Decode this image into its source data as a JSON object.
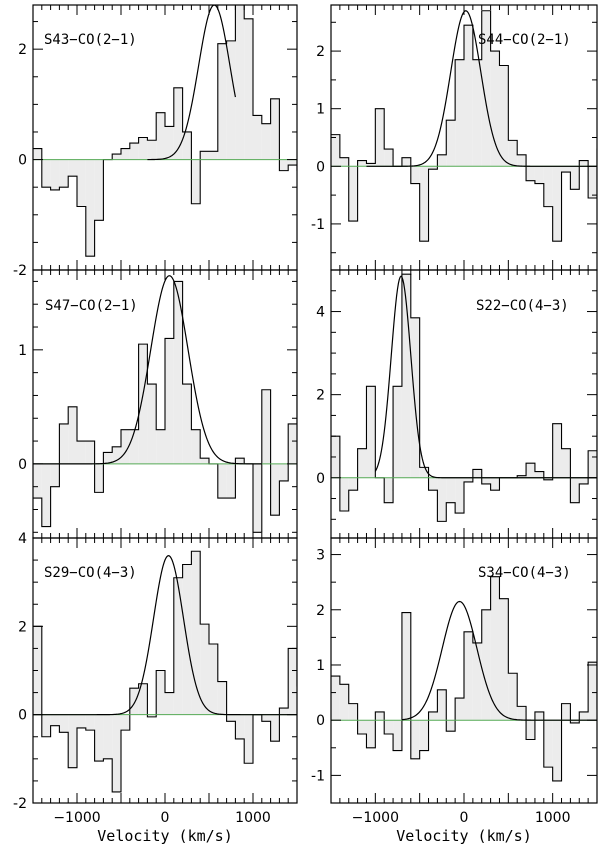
{
  "chart_data": [
    {
      "type": "histogram",
      "label": "S43−CO(2−1)",
      "xlim": [
        -1500,
        1500
      ],
      "ylim": [
        -2,
        2.8
      ],
      "yticks": [
        -2,
        0,
        2
      ],
      "xticks": [
        -1000,
        0,
        1000
      ],
      "bin_width": 100,
      "bins_start": -1500,
      "values": [
        0.2,
        -0.5,
        -0.55,
        -0.5,
        -0.3,
        -0.85,
        -1.75,
        -1.1,
        0.0,
        0.1,
        0.2,
        0.3,
        0.4,
        0.35,
        0.85,
        0.6,
        1.3,
        0.5,
        -0.8,
        0.15,
        0.15,
        2.1,
        2.15,
        2.85,
        2.55,
        0.8,
        0.65,
        1.1,
        -0.2,
        -0.1,
        -0.2,
        -0.3,
        -0.35,
        -0.5
      ],
      "fit": {
        "amplitude": 2.8,
        "center": 560,
        "fwhm": 420,
        "xrange": [
          -200,
          800
        ]
      }
    },
    {
      "type": "histogram",
      "label": "S44−CO(2−1)",
      "xlim": [
        -1500,
        1500
      ],
      "ylim": [
        -1.8,
        2.8
      ],
      "yticks": [
        -1,
        0,
        1,
        2
      ],
      "xticks": [
        -1000,
        0,
        1000
      ],
      "bin_width": 100,
      "bins_start": -1500,
      "values": [
        0.55,
        0.15,
        -0.95,
        0.1,
        0.05,
        1.0,
        0.3,
        0.0,
        0.15,
        -0.3,
        -1.3,
        -0.05,
        0.2,
        0.8,
        1.85,
        2.45,
        1.85,
        2.7,
        2.0,
        1.75,
        0.45,
        0.2,
        -0.25,
        -0.3,
        -0.7,
        -1.3,
        -0.1,
        -0.4,
        0.1,
        -0.55,
        0.3,
        0.85,
        0.35,
        0.95,
        0.2,
        -0.3
      ],
      "fit": {
        "amplitude": 2.7,
        "center": 20,
        "fwhm": 400,
        "xrange": [
          -1100,
          1500
        ]
      }
    },
    {
      "type": "histogram",
      "label": "S47−CO(2−1)",
      "xlim": [
        -1500,
        1500
      ],
      "ylim": [
        -0.65,
        1.7
      ],
      "yticks": [
        0,
        1
      ],
      "xticks": [
        -1000,
        0,
        1000
      ],
      "bin_width": 100,
      "bins_start": -1500,
      "values": [
        -0.3,
        -0.55,
        -0.2,
        0.35,
        0.5,
        0.2,
        0.2,
        -0.25,
        0.1,
        0.15,
        0.3,
        0.3,
        1.05,
        0.7,
        0.3,
        1.1,
        1.6,
        0.7,
        0.3,
        0.05,
        0.0,
        -0.3,
        -0.3,
        0.05,
        0.0,
        -0.6,
        0.65,
        -0.45,
        -0.15,
        0.35,
        0.8
      ],
      "fit": {
        "amplitude": 1.65,
        "center": 50,
        "fwhm": 500,
        "xrange": [
          -1500,
          1100
        ]
      }
    },
    {
      "type": "histogram",
      "label": "S22−CO(4−3)",
      "xlim": [
        -1500,
        1500
      ],
      "ylim": [
        -1.45,
        5.0
      ],
      "yticks": [
        0,
        2,
        4
      ],
      "xticks": [
        -1000,
        0,
        1000
      ],
      "bin_width": 100,
      "bins_start": -1500,
      "values": [
        1.0,
        -0.8,
        -0.3,
        0.7,
        2.2,
        0.0,
        -0.6,
        2.2,
        4.9,
        3.85,
        0.25,
        -0.3,
        -1.05,
        -0.6,
        -0.85,
        -0.1,
        0.2,
        -0.15,
        -0.3,
        0.0,
        0.0,
        0.05,
        0.35,
        0.15,
        -0.05,
        1.3,
        0.7,
        -0.6,
        -0.15,
        0.65,
        1.1,
        -0.65,
        0.0,
        0.25,
        1.5,
        0.5,
        0.1
      ],
      "fit": {
        "amplitude": 4.85,
        "center": -710,
        "fwhm": 260,
        "xrange": [
          -1000,
          1500
        ]
      }
    },
    {
      "type": "histogram",
      "label": "S29−CO(4−3)",
      "xlim": [
        -1500,
        1500
      ],
      "ylim": [
        -2,
        4
      ],
      "yticks": [
        -2,
        0,
        2,
        4
      ],
      "xticks": [
        -1000,
        0,
        1000
      ],
      "bin_width": 100,
      "bins_start": -1500,
      "values": [
        2.0,
        -0.5,
        -0.25,
        -0.4,
        -1.2,
        -0.3,
        -0.35,
        -1.05,
        -1.0,
        -1.75,
        -0.35,
        0.6,
        0.7,
        -0.05,
        1.0,
        0.5,
        3.1,
        3.4,
        3.7,
        2.05,
        1.6,
        0.75,
        -0.15,
        -0.55,
        -1.1,
        0.0,
        -0.15,
        -0.6,
        0.15,
        1.5,
        0.65,
        0.8,
        0.4,
        1.0,
        1.65,
        -0.4
      ],
      "fit": {
        "amplitude": 3.6,
        "center": 40,
        "fwhm": 400,
        "xrange": [
          -1500,
          1500
        ]
      }
    },
    {
      "type": "histogram",
      "label": "S34−CO(4−3)",
      "xlim": [
        -1500,
        1500
      ],
      "ylim": [
        -1.5,
        3.3
      ],
      "yticks": [
        -1,
        0,
        1,
        2,
        3
      ],
      "xticks": [
        -1000,
        0,
        1000
      ],
      "bin_width": 100,
      "bins_start": -1500,
      "values": [
        0.8,
        0.65,
        0.3,
        -0.25,
        -0.5,
        0.15,
        -0.25,
        -0.55,
        1.95,
        -0.7,
        -0.55,
        0.15,
        0.55,
        -0.2,
        0.4,
        1.6,
        1.4,
        2.0,
        2.6,
        2.2,
        0.85,
        0.25,
        -0.35,
        0.15,
        -0.85,
        -1.1,
        0.3,
        -0.05,
        0.15,
        1.05,
        0.2,
        1.15,
        0.75,
        0.25,
        1.2,
        -0.15
      ],
      "fit": {
        "amplitude": 2.15,
        "center": -50,
        "fwhm": 460,
        "xrange": [
          -700,
          1500
        ]
      }
    }
  ],
  "xlabel": "Velocity (km/s)",
  "colors": {
    "fill": "#ececec",
    "stroke": "#000000",
    "fit": "#000000",
    "baseline": "#000000",
    "zero_green": "#55aa55"
  }
}
